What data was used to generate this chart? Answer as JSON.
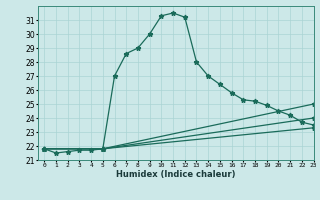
{
  "title": "",
  "xlabel": "Humidex (Indice chaleur)",
  "bg_color": "#cce8e8",
  "line_color": "#1a6b5a",
  "grid_color": "#aad4d4",
  "ylim": [
    21,
    32
  ],
  "xlim": [
    -0.5,
    23
  ],
  "yticks": [
    21,
    22,
    23,
    24,
    25,
    26,
    27,
    28,
    29,
    30,
    31
  ],
  "xticks": [
    0,
    1,
    2,
    3,
    4,
    5,
    6,
    7,
    8,
    9,
    10,
    11,
    12,
    13,
    14,
    15,
    16,
    17,
    18,
    19,
    20,
    21,
    22,
    23
  ],
  "line1_x": [
    0,
    1,
    2,
    3,
    4,
    5,
    6,
    7,
    8,
    9,
    10,
    11,
    12,
    13,
    14,
    15,
    16,
    17,
    18,
    19,
    20,
    21,
    22,
    23
  ],
  "line1_y": [
    21.8,
    21.5,
    21.6,
    21.7,
    21.7,
    21.8,
    27.0,
    28.6,
    29.0,
    30.0,
    31.3,
    31.5,
    31.2,
    28.0,
    27.0,
    26.4,
    25.8,
    25.3,
    25.2,
    24.9,
    24.5,
    24.2,
    23.7,
    23.5
  ],
  "line2_x": [
    0,
    5,
    23
  ],
  "line2_y": [
    21.8,
    21.8,
    25.0
  ],
  "line3_x": [
    0,
    5,
    23
  ],
  "line3_y": [
    21.8,
    21.8,
    24.0
  ],
  "line4_x": [
    0,
    5,
    23
  ],
  "line4_y": [
    21.8,
    21.8,
    23.3
  ]
}
